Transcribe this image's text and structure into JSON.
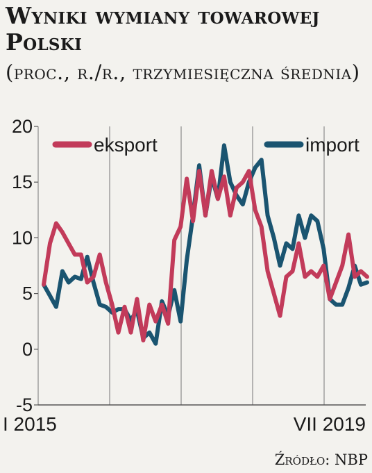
{
  "chart_data": {
    "type": "line",
    "title": "Wyniki wymiany towarowej Polski",
    "subtitle": "(proc., r./r., trzymiesięczna średnia)",
    "source": "Źródło: NBP",
    "ylim": [
      -5,
      20
    ],
    "yticks": [
      "20",
      "15",
      "10",
      "5",
      "0",
      "-5"
    ],
    "ytick_values": [
      20,
      15,
      10,
      5,
      0,
      -5
    ],
    "xtick_labels": [
      "I 2015",
      "VII 2019"
    ],
    "xrange": [
      "I 2015",
      "VII 2019"
    ],
    "grid": "vertical",
    "legend_position": "top",
    "series": [
      {
        "name": "eksport",
        "color": "#c23b5a",
        "values": [
          5.8,
          9.5,
          11.3,
          10.5,
          9.5,
          8.5,
          8.5,
          6.0,
          6.5,
          8.5,
          6.0,
          4.0,
          1.5,
          3.8,
          1.5,
          4.5,
          0.8,
          4.0,
          2.5,
          4.0,
          2.3,
          9.8,
          11.0,
          15.3,
          11.5,
          16.0,
          12.0,
          16.0,
          13.5,
          15.5,
          12.0,
          14.5,
          15.0,
          16.0,
          12.5,
          11.0,
          7.0,
          5.0,
          3.0,
          6.5,
          7.0,
          9.5,
          6.5,
          7.0,
          6.5,
          7.5,
          4.5,
          6.0,
          7.5,
          10.3,
          6.5,
          7.0,
          6.5
        ]
      },
      {
        "name": "import",
        "color": "#1a5470",
        "values": [
          5.8,
          4.8,
          3.8,
          7.0,
          6.0,
          6.5,
          6.3,
          8.3,
          6.0,
          4.0,
          3.8,
          3.3,
          3.6,
          3.6,
          2.6,
          3.5,
          1.0,
          1.5,
          0.5,
          4.3,
          3.0,
          5.3,
          2.5,
          8.0,
          12.0,
          16.5,
          12.0,
          15.5,
          13.5,
          18.3,
          15.0,
          13.8,
          13.0,
          15.0,
          16.3,
          17.0,
          12.0,
          10.0,
          7.5,
          9.5,
          9.0,
          12.0,
          10.0,
          12.0,
          11.5,
          9.0,
          4.5,
          4.0,
          4.0,
          5.5,
          7.5,
          5.8,
          6.0
        ]
      }
    ]
  }
}
